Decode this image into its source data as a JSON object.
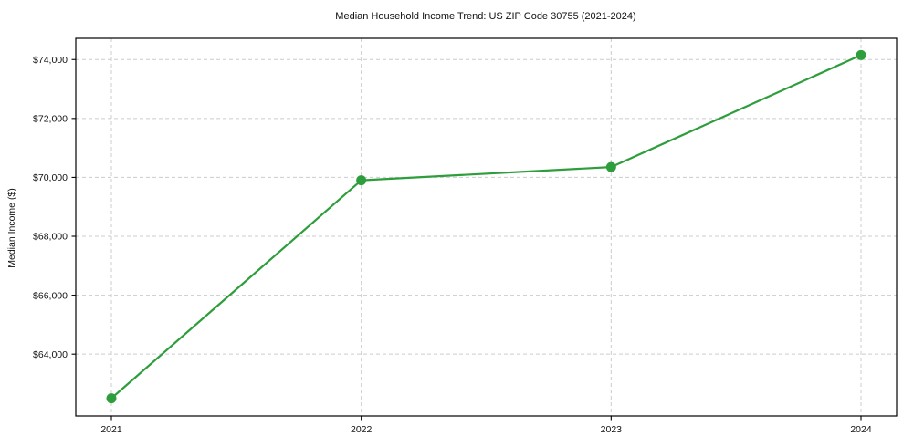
{
  "chart_data": {
    "type": "line",
    "title": "Median Household Income Trend: US ZIP Code 30755 (2021-2024)",
    "xlabel": "",
    "ylabel": "Median Income ($)",
    "categories": [
      "2021",
      "2022",
      "2023",
      "2024"
    ],
    "series": [
      {
        "values": [
          62500,
          69900,
          70350,
          74150
        ],
        "color": "#2e9e3c",
        "marker": "circle",
        "line_width": 2.2,
        "marker_radius": 5.5
      }
    ],
    "yticks": [
      {
        "value": 64000,
        "label": "$64,000"
      },
      {
        "value": 66000,
        "label": "$66,000"
      },
      {
        "value": 68000,
        "label": "$68,000"
      },
      {
        "value": 70000,
        "label": "$70,000"
      },
      {
        "value": 72000,
        "label": "$72,000"
      },
      {
        "value": 74000,
        "label": "$74,000"
      }
    ],
    "ylim": [
      61900,
      74720
    ],
    "grid": {
      "enabled": true,
      "axes": "both",
      "style": "dashed",
      "color": "#cccccc"
    },
    "legend": {
      "visible": false
    },
    "background": "#ffffff",
    "spine_color": "#000000",
    "tick_color": "#000000"
  }
}
